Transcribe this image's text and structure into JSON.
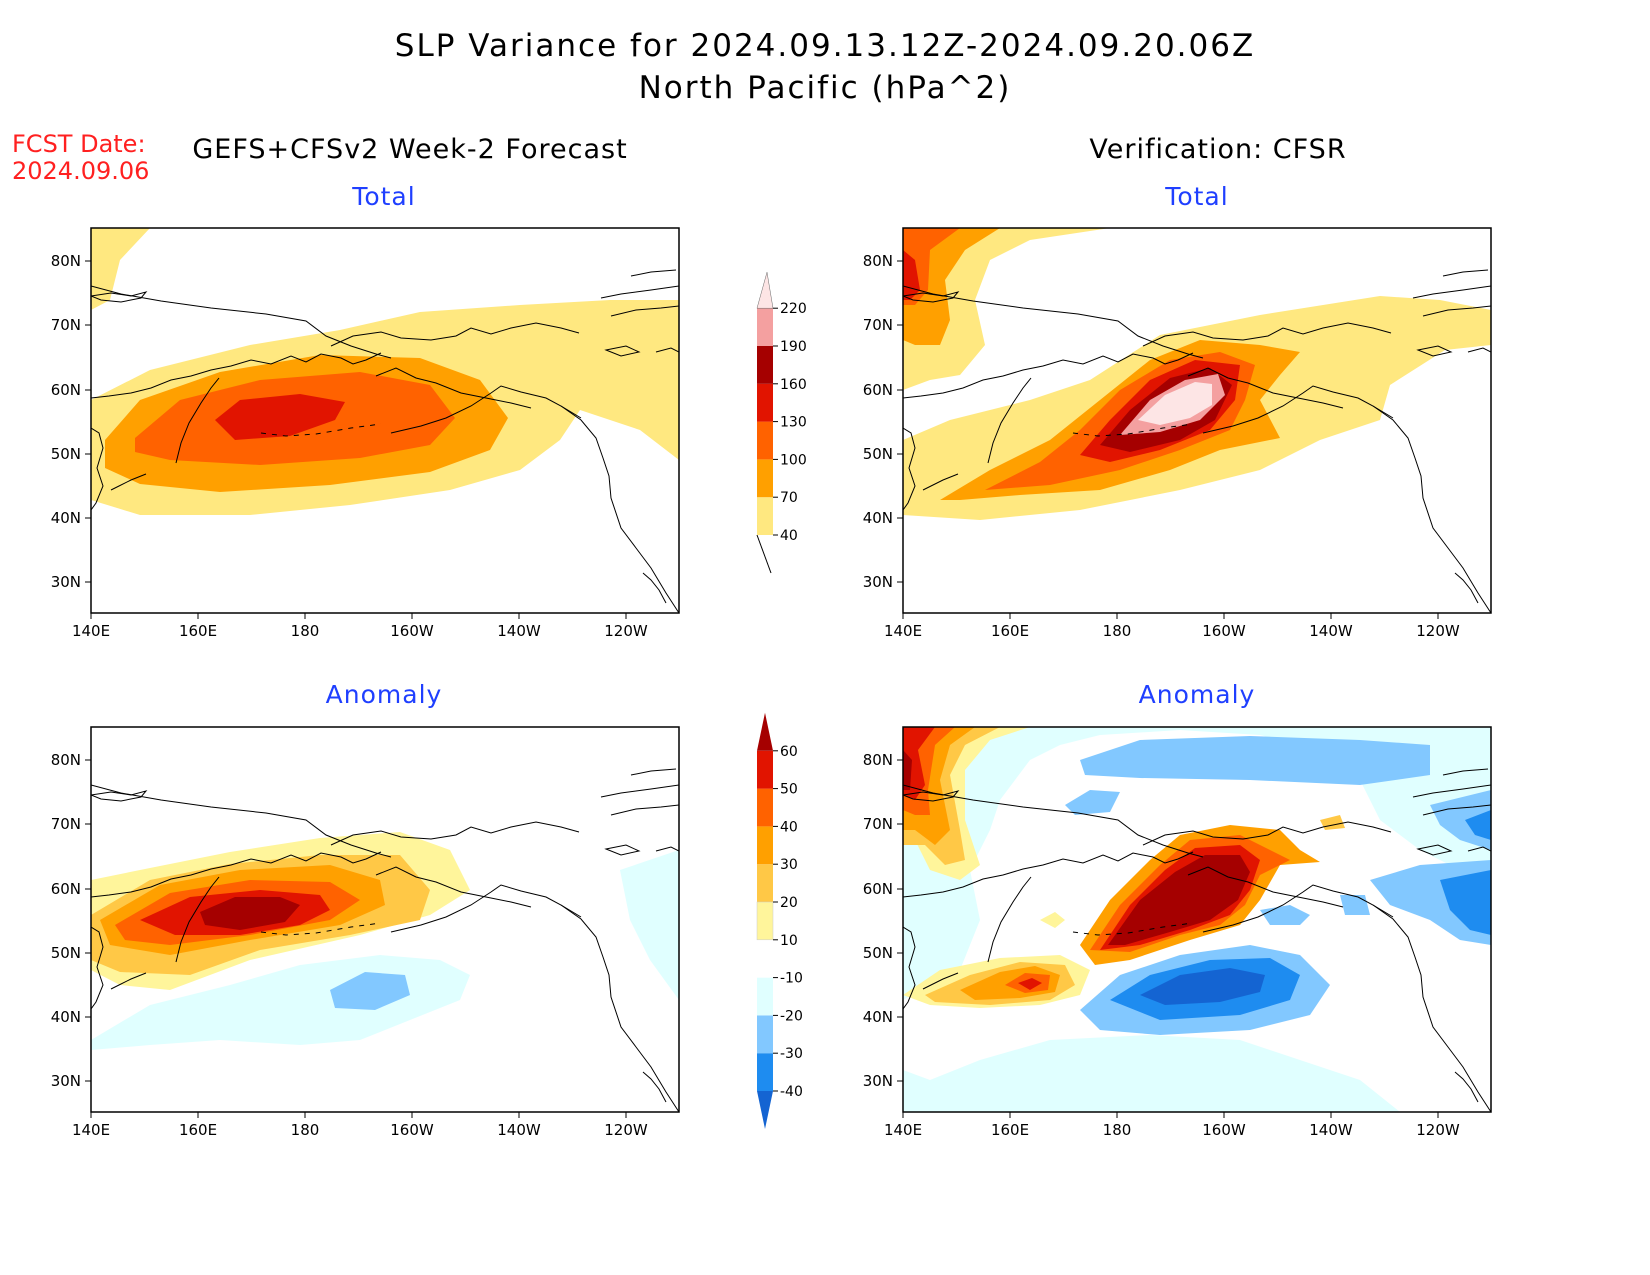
{
  "header": {
    "title": "SLP Variance for 2024.09.13.12Z-2024.09.20.06Z",
    "subtitle": "North Pacific (hPa^2)",
    "fcst_label": "FCST Date:",
    "fcst_date": "2024.09.06"
  },
  "columns": {
    "left": "GEFS+CFSv2 Week-2 Forecast",
    "right": "Verification: CFSR"
  },
  "panels": [
    {
      "id": "fcst-total",
      "label": "Total"
    },
    {
      "id": "verif-total",
      "label": "Total"
    },
    {
      "id": "fcst-anomaly",
      "label": "Anomaly"
    },
    {
      "id": "verif-anomaly",
      "label": "Anomaly"
    }
  ],
  "axes": {
    "lat_labels": [
      "80N",
      "70N",
      "60N",
      "50N",
      "40N",
      "30N"
    ],
    "lon_labels": [
      "140E",
      "160E",
      "180",
      "160W",
      "140W",
      "120W"
    ]
  },
  "colorbars": {
    "total": {
      "levels": [
        "40",
        "70",
        "100",
        "130",
        "160",
        "190",
        "220"
      ],
      "colors": [
        "#ffe880",
        "#ffa000",
        "#ff6200",
        "#e11400",
        "#a50000",
        "#f4a0a0",
        "#fde5e5"
      ]
    },
    "anomaly": {
      "levels": [
        "-40",
        "-30",
        "-20",
        "-10",
        "10",
        "20",
        "30",
        "40",
        "50",
        "60"
      ],
      "colors": [
        "#1464d2",
        "#1e8cf0",
        "#82c8ff",
        "#e0ffff",
        "#ffffff",
        "#fff59b",
        "#ffc846",
        "#ffa000",
        "#ff6200",
        "#e11400",
        "#a50000"
      ]
    }
  }
}
